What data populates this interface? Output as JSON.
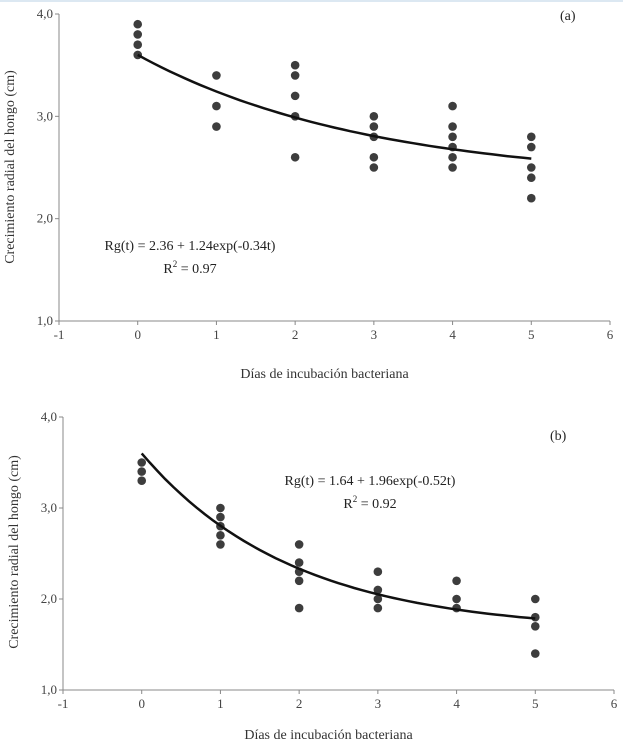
{
  "chart_data": [
    {
      "type": "scatter",
      "panel_label": "(a)",
      "xlabel": "Días de incubación bacteriana",
      "ylabel": "Crecimiento radial del hongo (cm)",
      "xlim": [
        -1,
        6
      ],
      "ylim": [
        1.0,
        4.0
      ],
      "xticks": [
        "-1",
        "0",
        "1",
        "2",
        "3",
        "4",
        "5",
        "6"
      ],
      "yticks": [
        "1,0",
        "2,0",
        "3,0",
        "4,0"
      ],
      "grid": false,
      "points": [
        {
          "x": 0,
          "y": [
            3.9,
            3.8,
            3.7,
            3.6
          ]
        },
        {
          "x": 1,
          "y": [
            3.4,
            3.1,
            2.9
          ]
        },
        {
          "x": 2,
          "y": [
            3.5,
            3.4,
            3.2,
            3.0,
            2.6
          ]
        },
        {
          "x": 3,
          "y": [
            3.0,
            2.9,
            2.8,
            2.6,
            2.5
          ]
        },
        {
          "x": 4,
          "y": [
            3.1,
            2.9,
            2.8,
            2.7,
            2.6,
            2.5
          ]
        },
        {
          "x": 5,
          "y": [
            2.8,
            2.7,
            2.5,
            2.4,
            2.2
          ]
        }
      ],
      "fit": {
        "a": 2.36,
        "b": 1.24,
        "k": 0.34,
        "x_range": [
          0,
          5
        ]
      },
      "equation": "Rg(t) = 2.36 + 1.24exp(-0.34t)",
      "r2_label": "R",
      "r2_sup": "2",
      "r2_value": " = 0.97",
      "point_color": "#3d3d3d",
      "line_color": "#111111"
    },
    {
      "type": "scatter",
      "panel_label": "(b)",
      "xlabel": "Días de incubación bacteriana",
      "ylabel": "Crecimiento radial del hongo (cm)",
      "xlim": [
        -1,
        6
      ],
      "ylim": [
        1.0,
        4.0
      ],
      "xticks": [
        "-1",
        "0",
        "1",
        "2",
        "3",
        "4",
        "5",
        "6"
      ],
      "yticks": [
        "1,0",
        "2,0",
        "3,0",
        "4,0"
      ],
      "grid": false,
      "points": [
        {
          "x": 0,
          "y": [
            3.5,
            3.4,
            3.3
          ]
        },
        {
          "x": 1,
          "y": [
            3.0,
            2.9,
            2.8,
            2.7,
            2.6
          ]
        },
        {
          "x": 2,
          "y": [
            2.6,
            2.4,
            2.3,
            2.2,
            1.9
          ]
        },
        {
          "x": 3,
          "y": [
            2.3,
            2.1,
            2.0,
            1.9
          ]
        },
        {
          "x": 4,
          "y": [
            2.2,
            2.0,
            1.9
          ]
        },
        {
          "x": 5,
          "y": [
            2.0,
            1.8,
            1.7,
            1.4
          ]
        }
      ],
      "fit": {
        "a": 1.64,
        "b": 1.96,
        "k": 0.52,
        "x_range": [
          0,
          5
        ]
      },
      "equation": "Rg(t) = 1.64 + 1.96exp(-0.52t)",
      "r2_label": "R",
      "r2_sup": "2",
      "r2_value": " = 0.92",
      "point_color": "#3d3d3d",
      "line_color": "#111111"
    }
  ]
}
